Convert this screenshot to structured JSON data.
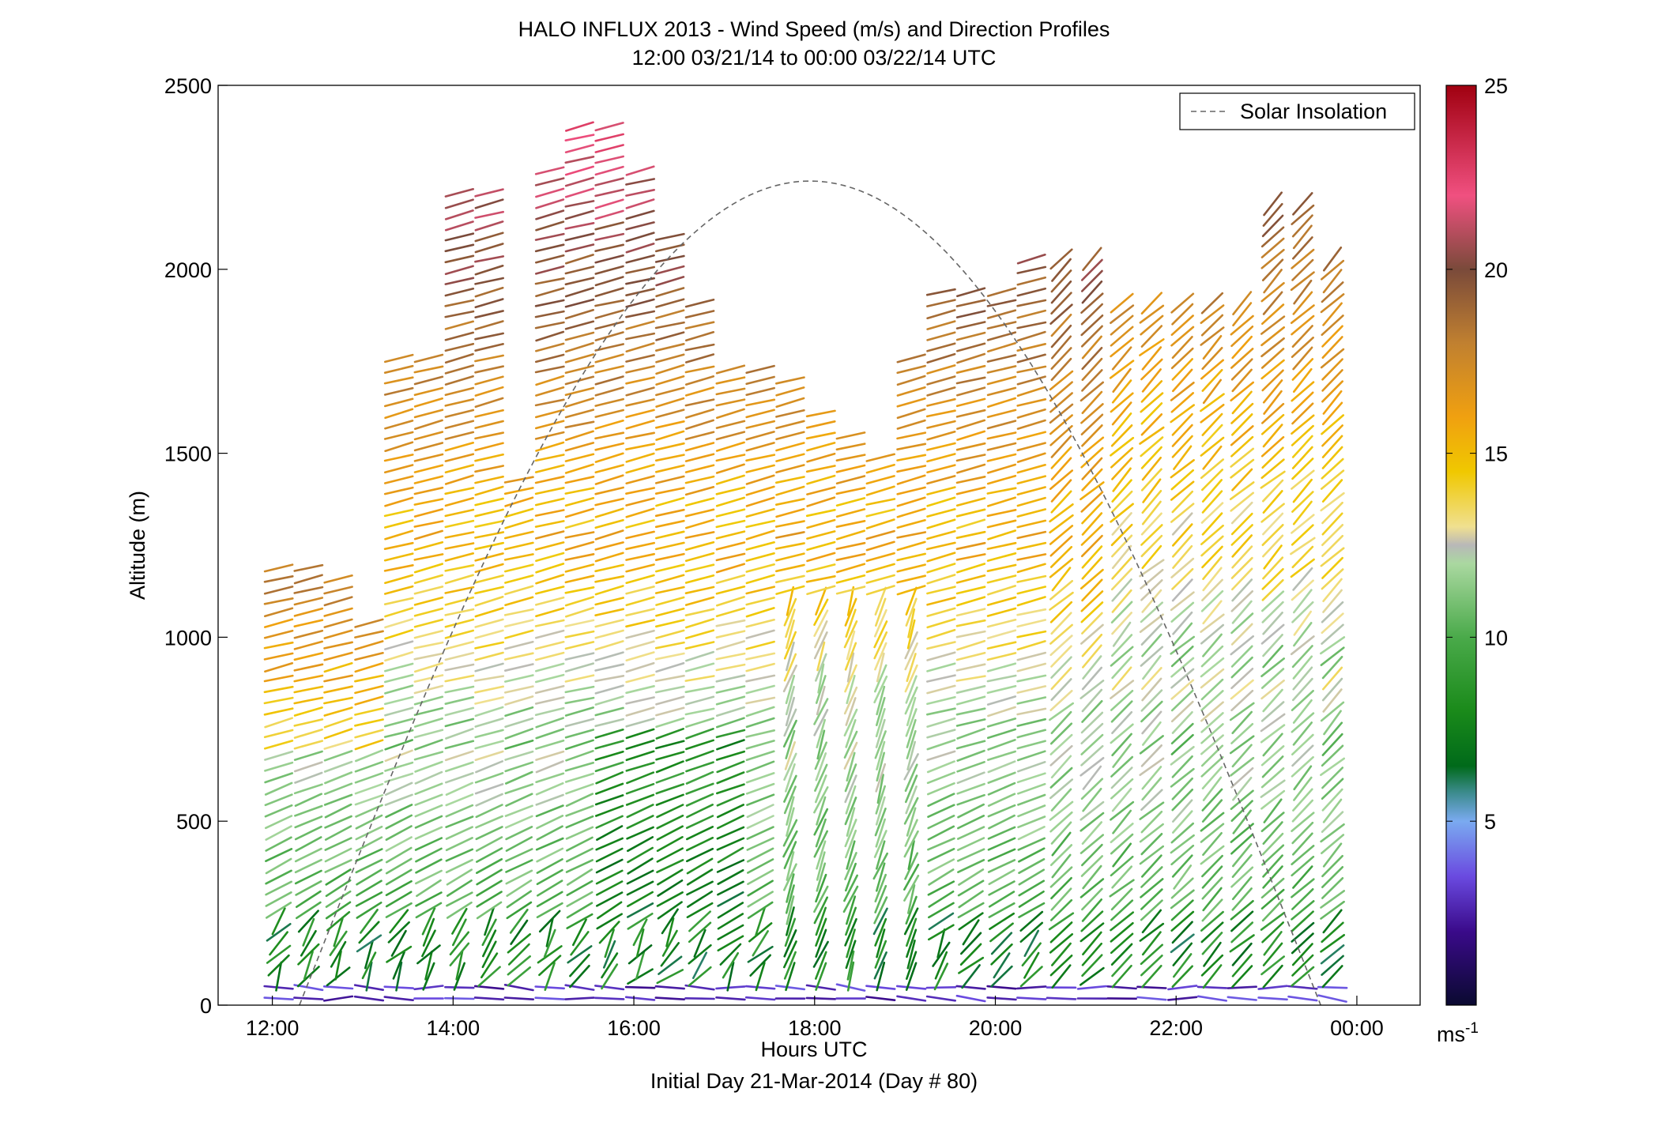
{
  "chart_data": {
    "type": "wind-barb-profile",
    "title_line1": "HALO INFLUX 2013 - Wind Speed (m/s) and Direction Profiles",
    "title_line2": "12:00 03/21/14 to 00:00 03/22/14  UTC",
    "xlabel": "Hours UTC",
    "xlabel_sub": "Initial Day 21-Mar-2014 (Day # 80)",
    "ylabel": "Altitude (m)",
    "x_ticks": [
      {
        "value": 12,
        "label": "12:00"
      },
      {
        "value": 14,
        "label": "14:00"
      },
      {
        "value": 16,
        "label": "16:00"
      },
      {
        "value": 18,
        "label": "18:00"
      },
      {
        "value": 20,
        "label": "20:00"
      },
      {
        "value": 22,
        "label": "22:00"
      },
      {
        "value": 24,
        "label": "00:00"
      }
    ],
    "xlim": [
      11.4,
      24.7
    ],
    "y_ticks": [
      0,
      500,
      1000,
      1500,
      2000,
      2500
    ],
    "ylim": [
      0,
      2500
    ],
    "legend": {
      "label": "Solar Insolation",
      "placement": "top-right"
    },
    "solar_insolation": {
      "start_hour": 12.3,
      "peak_hour": 17.95,
      "end_hour": 23.6,
      "peak_altitude_m": 2240
    },
    "colorbar": {
      "ticks": [
        5,
        10,
        15,
        20,
        25
      ],
      "range": [
        0,
        25
      ],
      "unit_label": "ms",
      "unit_exp": "-1",
      "stops": [
        {
          "v": 0,
          "c": "#0a0a30"
        },
        {
          "v": 2,
          "c": "#3a0a8a"
        },
        {
          "v": 3.5,
          "c": "#6a4ae0"
        },
        {
          "v": 5,
          "c": "#7aaaf0"
        },
        {
          "v": 5.8,
          "c": "#3a8a8a"
        },
        {
          "v": 6.5,
          "c": "#006a1a"
        },
        {
          "v": 8,
          "c": "#1a8a1a"
        },
        {
          "v": 10,
          "c": "#4aaa4a"
        },
        {
          "v": 12,
          "c": "#aad8a0"
        },
        {
          "v": 12.5,
          "c": "#b8b8b8"
        },
        {
          "v": 13,
          "c": "#f0e090"
        },
        {
          "v": 14.5,
          "c": "#f0c800"
        },
        {
          "v": 16,
          "c": "#f0a010"
        },
        {
          "v": 18,
          "c": "#c08030"
        },
        {
          "v": 20,
          "c": "#7a4a3a"
        },
        {
          "v": 22,
          "c": "#f05080"
        },
        {
          "v": 25,
          "c": "#a00010"
        }
      ]
    },
    "profile_times": [
      12.07,
      12.4,
      12.73,
      13.07,
      13.4,
      13.73,
      14.07,
      14.4,
      14.73,
      15.07,
      15.4,
      15.73,
      16.07,
      16.4,
      16.73,
      17.07,
      17.4,
      17.73,
      18.07,
      18.4,
      18.73,
      19.07,
      19.4,
      19.73,
      20.07,
      20.4,
      20.73,
      21.07,
      21.4,
      21.73,
      22.07,
      22.4,
      22.73,
      23.07,
      23.4,
      23.73
    ],
    "profile_tops_m": [
      1200,
      1200,
      1160,
      1060,
      1780,
      1780,
      2220,
      2220,
      1450,
      2270,
      2410,
      2410,
      2270,
      2100,
      1930,
      1740,
      1740,
      1700,
      1620,
      1570,
      1500,
      1780,
      1960,
      1960,
      1960,
      2040,
      2040,
      2040,
      1920,
      1920,
      1920,
      1920,
      1920,
      2190,
      2190,
      2050
    ]
  }
}
